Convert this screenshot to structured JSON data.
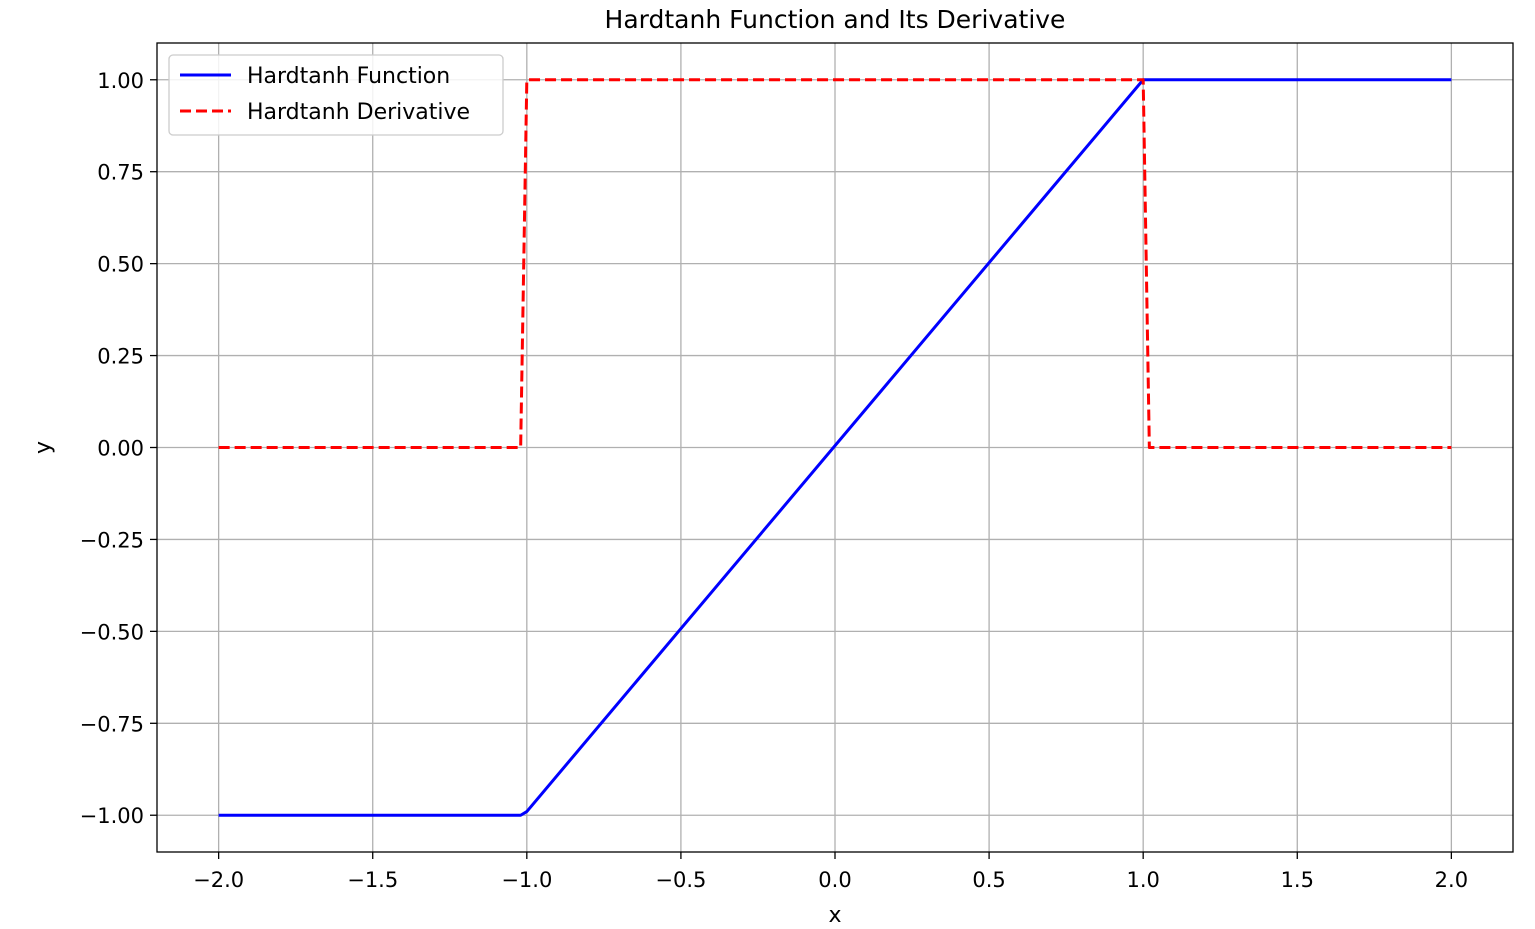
{
  "chart_data": {
    "type": "line",
    "title": "Hardtanh Function and Its Derivative",
    "xlabel": "x",
    "ylabel": "y",
    "xlim": [
      -2.2,
      2.2
    ],
    "ylim": [
      -1.1,
      1.1
    ],
    "x_ticks": [
      -2.0,
      -1.5,
      -1.0,
      -0.5,
      0.0,
      0.5,
      1.0,
      1.5,
      2.0
    ],
    "x_tick_labels": [
      "−2.0",
      "−1.5",
      "−1.0",
      "−0.5",
      "0.0",
      "0.5",
      "1.0",
      "1.5",
      "2.0"
    ],
    "y_ticks": [
      -1.0,
      -0.75,
      -0.5,
      -0.25,
      0.0,
      0.25,
      0.5,
      0.75,
      1.0
    ],
    "y_tick_labels": [
      "−1.00",
      "−0.75",
      "−0.50",
      "−0.25",
      "0.00",
      "0.25",
      "0.50",
      "0.75",
      "1.00"
    ],
    "grid": true,
    "legend_position": "top-left",
    "series": [
      {
        "name": "Hardtanh Function",
        "color": "#0000ff",
        "style": "solid",
        "x": [
          -2.0,
          -1.02,
          -1.0,
          1.0,
          1.02,
          2.0
        ],
        "y": [
          -1.0,
          -1.0,
          -0.99,
          1.0,
          1.0,
          1.0
        ]
      },
      {
        "name": "Hardtanh Derivative",
        "color": "#ff0000",
        "style": "dashed",
        "x": [
          -2.0,
          -1.02,
          -1.0,
          1.0,
          1.02,
          2.0
        ],
        "y": [
          0.0,
          0.0,
          1.0,
          1.0,
          0.0,
          0.0
        ]
      }
    ]
  }
}
